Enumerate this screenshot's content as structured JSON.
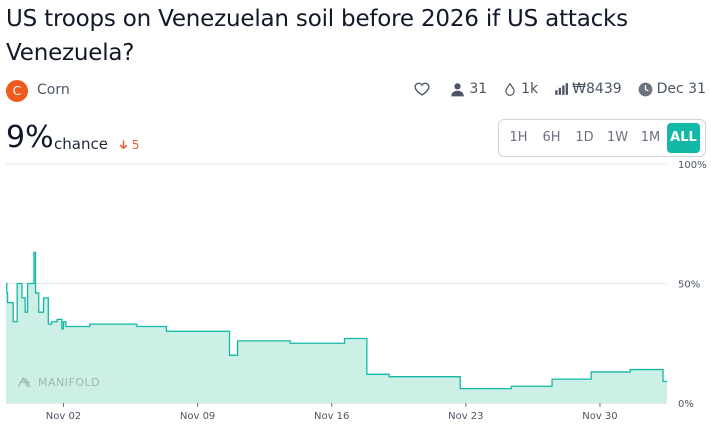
{
  "market": {
    "title": "US troops on Venezuelan soil before 2026 if US attacks Venezuela?",
    "creator": {
      "initial": "C",
      "name": "Corn"
    },
    "stats": {
      "traders": "31",
      "volume": "1k",
      "liquidity": "₩8439",
      "close_date": "Dec 31"
    },
    "probability": "9%",
    "chance_label": "chance",
    "change": "5"
  },
  "range_buttons": [
    "1H",
    "6H",
    "1D",
    "1W",
    "1M",
    "ALL"
  ],
  "range_selected": "ALL",
  "watermark": "MANIFOLD",
  "icons": {
    "like": "heart-icon",
    "traders": "user-icon",
    "volume": "droplet-icon",
    "liquidity": "bar-chart-icon",
    "close": "clock-icon",
    "change": "arrow-down-icon"
  },
  "colors": {
    "line": "#14b8a6",
    "fill": "#ccefe6",
    "avatar": "#ef5a1f",
    "down": "#ef5a2e",
    "active_button": "#14b8a6"
  },
  "chart_data": {
    "type": "area",
    "y_axis_ticks": [
      "100%",
      "50%",
      "0%"
    ],
    "x_axis_ticks": [
      "Nov 02",
      "Nov 09",
      "Nov 16",
      "Nov 23",
      "Nov 30"
    ],
    "ylim": [
      0,
      100
    ],
    "grid": true,
    "series": [
      {
        "step": "after",
        "points": [
          {
            "x": "Oct 30 00:00",
            "y": 50
          },
          {
            "x": "Oct 30 01:00",
            "y": 46
          },
          {
            "x": "Oct 30 02:00",
            "y": 42
          },
          {
            "x": "Oct 30 09:00",
            "y": 34
          },
          {
            "x": "Oct 30 14:00",
            "y": 50
          },
          {
            "x": "Oct 30 20:00",
            "y": 44
          },
          {
            "x": "Oct 31 00:00",
            "y": 38
          },
          {
            "x": "Oct 31 03:00",
            "y": 50
          },
          {
            "x": "Oct 31 11:00",
            "y": 63
          },
          {
            "x": "Oct 31 13:00",
            "y": 46
          },
          {
            "x": "Oct 31 17:00",
            "y": 38
          },
          {
            "x": "Oct 31 23:00",
            "y": 44
          },
          {
            "x": "Nov 01 05:00",
            "y": 33
          },
          {
            "x": "Nov 01 09:00",
            "y": 34
          },
          {
            "x": "Nov 01 16:00",
            "y": 35
          },
          {
            "x": "Nov 01 22:00",
            "y": 31
          },
          {
            "x": "Nov 02 00:00",
            "y": 34
          },
          {
            "x": "Nov 02 03:00",
            "y": 32
          },
          {
            "x": "Nov 03 09:00",
            "y": 33
          },
          {
            "x": "Nov 05 20:00",
            "y": 32
          },
          {
            "x": "Nov 07 09:00",
            "y": 30
          },
          {
            "x": "Nov 10 16:00",
            "y": 20
          },
          {
            "x": "Nov 11 02:00",
            "y": 26
          },
          {
            "x": "Nov 12 06:00",
            "y": 26
          },
          {
            "x": "Nov 13 20:00",
            "y": 25
          },
          {
            "x": "Nov 16 16:00",
            "y": 27
          },
          {
            "x": "Nov 17 20:00",
            "y": 12
          },
          {
            "x": "Nov 19 00:00",
            "y": 11
          },
          {
            "x": "Nov 19 17:00",
            "y": 11
          },
          {
            "x": "Nov 22 17:00",
            "y": 6
          },
          {
            "x": "Nov 25 09:00",
            "y": 7
          },
          {
            "x": "Nov 27 12:00",
            "y": 10
          },
          {
            "x": "Nov 29 13:00",
            "y": 13
          },
          {
            "x": "Dec 01 14:00",
            "y": 14
          },
          {
            "x": "Dec 03 07:00",
            "y": 9
          },
          {
            "x": "Dec 03 12:00",
            "y": 9
          }
        ]
      }
    ]
  }
}
